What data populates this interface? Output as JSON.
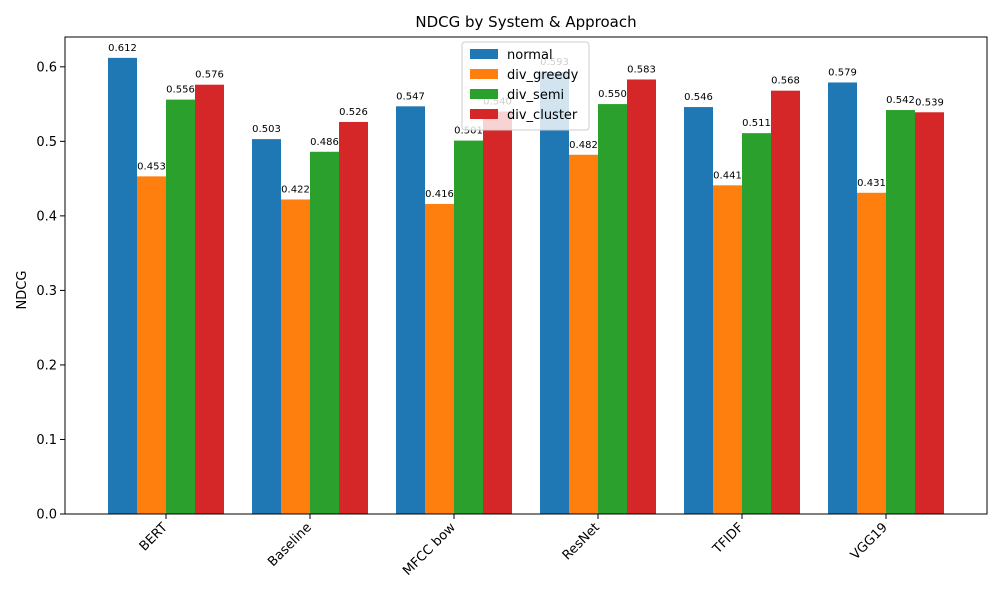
{
  "chart_data": {
    "type": "bar",
    "title": "NDCG by System & Approach",
    "xlabel": "",
    "ylabel": "NDCG",
    "ylim": [
      0,
      0.64
    ],
    "yticks": [
      "0.0",
      "0.1",
      "0.2",
      "0.3",
      "0.4",
      "0.5",
      "0.6"
    ],
    "categories": [
      "BERT",
      "Baseline",
      "MFCC bow",
      "ResNet",
      "TFIDF",
      "VGG19"
    ],
    "series": [
      {
        "name": "normal",
        "color": "#1f77b4",
        "values": [
          0.612,
          0.503,
          0.547,
          0.593,
          0.546,
          0.579
        ],
        "labels": [
          "0.612",
          "0.503",
          "0.547",
          "0.593",
          "0.546",
          "0.579"
        ]
      },
      {
        "name": "div_greedy",
        "color": "#ff7f0e",
        "values": [
          0.453,
          0.422,
          0.416,
          0.482,
          0.441,
          0.431
        ],
        "labels": [
          "0.453",
          "0.422",
          "0.416",
          "0.482",
          "0.441",
          "0.431"
        ]
      },
      {
        "name": "div_semi",
        "color": "#2ca02c",
        "values": [
          0.556,
          0.486,
          0.501,
          0.55,
          0.511,
          0.542
        ],
        "labels": [
          "0.556",
          "0.486",
          "0.501",
          "0.550",
          "0.511",
          "0.542"
        ]
      },
      {
        "name": "div_cluster",
        "color": "#d62728",
        "values": [
          0.576,
          0.526,
          0.54,
          0.583,
          0.568,
          0.539
        ],
        "labels": [
          "0.576",
          "0.526",
          "0.540",
          "0.583",
          "0.568",
          "0.539"
        ]
      }
    ],
    "legend_position": "top-center",
    "grid": false
  }
}
